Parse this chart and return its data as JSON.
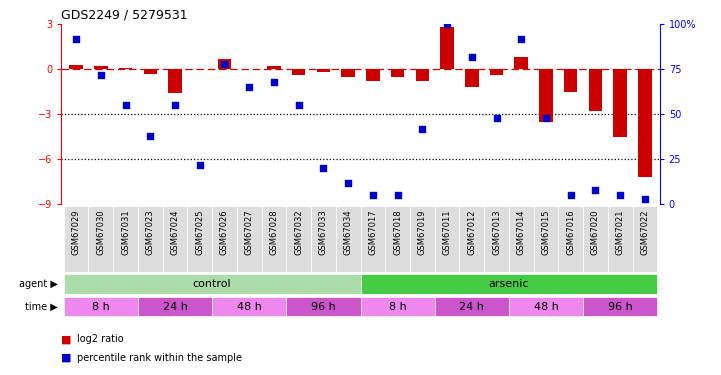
{
  "title": "GDS2249 / 5279531",
  "samples": [
    "GSM67029",
    "GSM67030",
    "GSM67031",
    "GSM67023",
    "GSM67024",
    "GSM67025",
    "GSM67026",
    "GSM67027",
    "GSM67028",
    "GSM67032",
    "GSM67033",
    "GSM67034",
    "GSM67017",
    "GSM67018",
    "GSM67019",
    "GSM67011",
    "GSM67012",
    "GSM67013",
    "GSM67014",
    "GSM67015",
    "GSM67016",
    "GSM67020",
    "GSM67021",
    "GSM67022"
  ],
  "log2_ratio": [
    0.3,
    0.2,
    0.1,
    -0.3,
    -1.6,
    0.05,
    0.7,
    0.05,
    0.25,
    -0.4,
    -0.2,
    -0.5,
    -0.8,
    -0.5,
    -0.8,
    2.8,
    -1.2,
    -0.4,
    0.8,
    -3.5,
    -1.5,
    -2.8,
    -4.5,
    -7.2
  ],
  "percentile_rank": [
    92,
    72,
    55,
    38,
    55,
    22,
    78,
    65,
    68,
    55,
    20,
    12,
    5,
    5,
    42,
    100,
    82,
    48,
    92,
    48,
    5,
    8,
    5,
    3
  ],
  "log2_ylim": [
    -9,
    3
  ],
  "log2_yticks": [
    -9,
    -6,
    -3,
    0,
    3
  ],
  "pct_ylim": [
    0,
    100
  ],
  "pct_yticks": [
    0,
    25,
    50,
    75,
    100
  ],
  "bar_color": "#cc0000",
  "dot_color": "#0000cc",
  "dotted_lines": [
    -3,
    -6
  ],
  "agent_groups": [
    {
      "label": "control",
      "start": 0,
      "end": 11,
      "color": "#aaddaa"
    },
    {
      "label": "arsenic",
      "start": 12,
      "end": 23,
      "color": "#44cc44"
    }
  ],
  "time_groups": [
    {
      "label": "8 h",
      "start": 0,
      "end": 2,
      "color": "#ee88ee"
    },
    {
      "label": "24 h",
      "start": 3,
      "end": 5,
      "color": "#cc55cc"
    },
    {
      "label": "48 h",
      "start": 6,
      "end": 8,
      "color": "#ee88ee"
    },
    {
      "label": "96 h",
      "start": 9,
      "end": 11,
      "color": "#cc55cc"
    },
    {
      "label": "8 h",
      "start": 12,
      "end": 14,
      "color": "#ee88ee"
    },
    {
      "label": "24 h",
      "start": 15,
      "end": 17,
      "color": "#cc55cc"
    },
    {
      "label": "48 h",
      "start": 18,
      "end": 20,
      "color": "#ee88ee"
    },
    {
      "label": "96 h",
      "start": 21,
      "end": 23,
      "color": "#cc55cc"
    }
  ]
}
